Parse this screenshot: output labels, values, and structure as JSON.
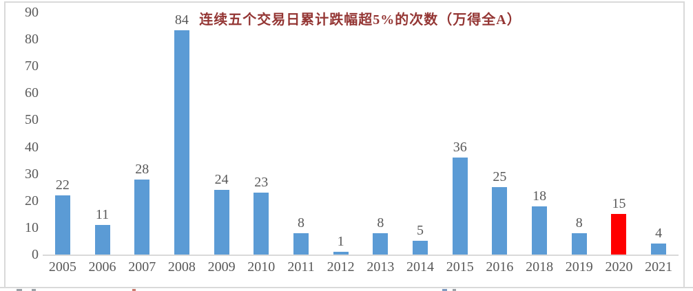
{
  "chart_data": {
    "type": "bar",
    "title": "连续五个交易日累计跌幅超5%的次数（万得全A）",
    "categories": [
      "2005",
      "2006",
      "2007",
      "2008",
      "2009",
      "2010",
      "2011",
      "2012",
      "2013",
      "2014",
      "2015",
      "2016",
      "2018",
      "2019",
      "2020",
      "2021"
    ],
    "values": [
      22,
      11,
      28,
      84,
      24,
      23,
      8,
      1,
      8,
      5,
      36,
      25,
      18,
      8,
      15,
      4
    ],
    "highlighted_category": "2020",
    "y_ticks": [
      0,
      10,
      20,
      30,
      40,
      50,
      60,
      70,
      80,
      90
    ],
    "ylim": [
      0,
      90
    ],
    "xlabel": "",
    "ylabel": "",
    "grid": false,
    "legend": false,
    "data_labels_shown": true,
    "colors": {
      "bar": "#5B9BD5",
      "highlight": "#FF0000",
      "title": "#943634",
      "axis_label": "#595959",
      "data_label": "#595959",
      "axis_line": "#D9D9D9",
      "frame_border": "#D9D9D9"
    }
  }
}
